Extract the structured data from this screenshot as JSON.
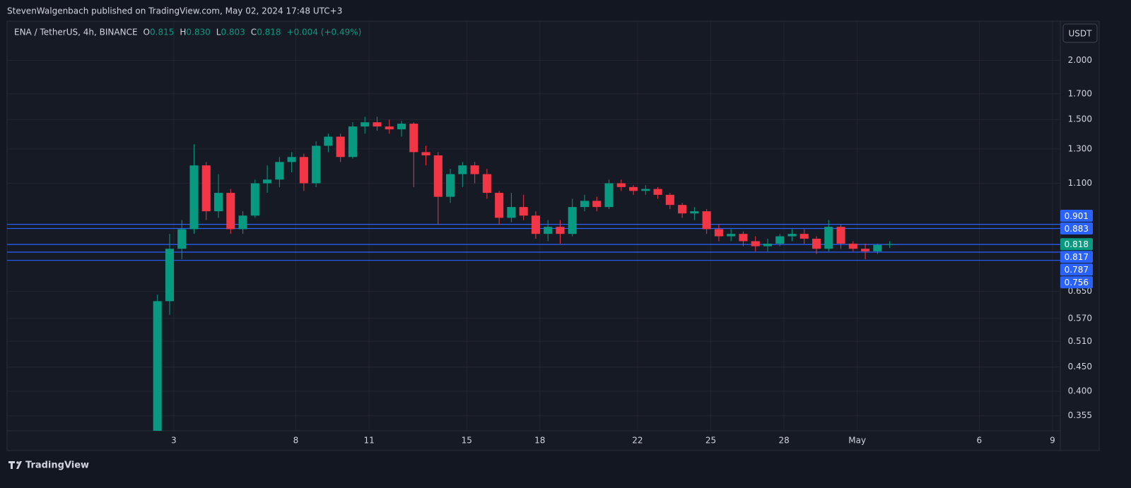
{
  "header": {
    "publisher": "StevenWalgenbach published on TradingView.com, May 02, 2024 17:48 UTC+3",
    "brand": "TradingView"
  },
  "chart_data": {
    "type": "candlestick",
    "legend": {
      "symbol": "ENA / TetherUS, 4h, BINANCE",
      "items": [
        {
          "key": "O",
          "value": "0.815"
        },
        {
          "key": "H",
          "value": "0.830"
        },
        {
          "key": "L",
          "value": "0.803"
        },
        {
          "key": "C",
          "value": "0.818"
        }
      ],
      "change": "+0.004 (+0.49%)"
    },
    "currency": "USDT",
    "up_color": "#089981",
    "down_color": "#f23645",
    "x": [
      2.33,
      2.83,
      3.33,
      3.83,
      4.33,
      4.83,
      5.33,
      5.83,
      6.33,
      6.83,
      7.33,
      7.83,
      8.33,
      8.83,
      9.33,
      9.83,
      10.33,
      10.83,
      11.33,
      11.83,
      12.33,
      12.83,
      13.33,
      13.83,
      14.33,
      14.83,
      15.33,
      15.83,
      16.33,
      16.83,
      17.33,
      17.83,
      18.33,
      18.83,
      19.33,
      19.83,
      20.33,
      20.83,
      21.33,
      21.83,
      22.33,
      22.83,
      23.33,
      23.83,
      24.33,
      24.83,
      25.33,
      25.83,
      26.33,
      26.83,
      27.33,
      27.83,
      28.33,
      28.83,
      29.33,
      29.83,
      30.33,
      30.83,
      31.33,
      31.83,
      32.33
    ],
    "open": [
      0.33,
      0.62,
      0.8,
      0.88,
      1.2,
      0.96,
      1.05,
      0.88,
      0.94,
      1.1,
      1.12,
      1.22,
      1.25,
      1.1,
      1.32,
      1.38,
      1.25,
      1.45,
      1.48,
      1.45,
      1.43,
      1.47,
      1.28,
      1.26,
      1.03,
      1.15,
      1.2,
      1.15,
      1.05,
      0.93,
      0.98,
      0.94,
      0.86,
      0.89,
      0.86,
      0.98,
      1.01,
      0.98,
      1.1,
      1.08,
      1.06,
      1.07,
      1.04,
      0.99,
      0.95,
      0.96,
      0.88,
      0.85,
      0.86,
      0.83,
      0.81,
      0.82,
      0.85,
      0.86,
      0.84,
      0.8,
      0.89,
      0.82,
      0.8,
      0.79,
      0.815
    ],
    "high": [
      0.64,
      0.86,
      0.92,
      1.33,
      1.22,
      1.15,
      1.07,
      0.96,
      1.12,
      1.2,
      1.25,
      1.28,
      1.27,
      1.35,
      1.4,
      1.4,
      1.48,
      1.52,
      1.52,
      1.5,
      1.49,
      1.48,
      1.32,
      1.28,
      1.18,
      1.22,
      1.22,
      1.18,
      1.06,
      1.05,
      1.04,
      0.96,
      0.92,
      0.92,
      1.02,
      1.04,
      1.03,
      1.12,
      1.12,
      1.09,
      1.09,
      1.08,
      1.05,
      1.0,
      0.98,
      0.97,
      0.9,
      0.88,
      0.87,
      0.85,
      0.84,
      0.86,
      0.88,
      0.88,
      0.85,
      0.92,
      0.9,
      0.83,
      0.82,
      0.82,
      0.83
    ],
    "low": [
      0.334,
      0.58,
      0.76,
      0.86,
      0.92,
      0.93,
      0.86,
      0.86,
      0.93,
      1.05,
      1.08,
      1.16,
      1.06,
      1.08,
      1.28,
      1.22,
      1.24,
      1.4,
      1.42,
      1.4,
      1.38,
      1.08,
      1.2,
      0.9,
      1.0,
      1.08,
      1.1,
      1.02,
      0.9,
      0.91,
      0.92,
      0.84,
      0.83,
      0.82,
      0.85,
      0.96,
      0.96,
      0.97,
      1.06,
      1.04,
      1.04,
      1.02,
      0.97,
      0.93,
      0.92,
      0.86,
      0.83,
      0.83,
      0.81,
      0.79,
      0.79,
      0.81,
      0.83,
      0.82,
      0.78,
      0.79,
      0.8,
      0.79,
      0.76,
      0.78,
      0.803
    ],
    "close": [
      0.62,
      0.8,
      0.88,
      1.2,
      0.96,
      1.05,
      0.88,
      0.94,
      1.1,
      1.12,
      1.22,
      1.25,
      1.1,
      1.32,
      1.38,
      1.25,
      1.45,
      1.48,
      1.45,
      1.43,
      1.47,
      1.28,
      1.26,
      1.03,
      1.15,
      1.2,
      1.15,
      1.05,
      0.93,
      0.98,
      0.94,
      0.86,
      0.89,
      0.86,
      0.98,
      1.01,
      0.98,
      1.1,
      1.08,
      1.06,
      1.07,
      1.04,
      0.99,
      0.95,
      0.96,
      0.88,
      0.85,
      0.86,
      0.83,
      0.81,
      0.82,
      0.85,
      0.86,
      0.84,
      0.8,
      0.89,
      0.82,
      0.8,
      0.79,
      0.815,
      0.818
    ],
    "horizontal_lines": {
      "color": "#2962ff",
      "values": [
        0.901,
        0.883,
        0.817,
        0.787,
        0.756
      ]
    },
    "log_scale": true,
    "grid": true,
    "xlim": [
      -3.83,
      39.32
    ],
    "xticks": [
      3,
      8,
      11,
      15,
      18,
      22,
      25,
      28,
      {
        "value": 31,
        "label": "May"
      },
      {
        "value": 36,
        "label": "6"
      },
      {
        "value": 39,
        "label": "9"
      }
    ],
    "ylim": [
      0.33,
      2.42
    ],
    "yticks": [
      {
        "value": 0.355,
        "label": "0.355"
      },
      {
        "value": 0.4,
        "label": "0.400"
      },
      {
        "value": 0.45,
        "label": "0.450"
      },
      {
        "value": 0.51,
        "label": "0.510"
      },
      {
        "value": 0.57,
        "label": "0.570"
      },
      {
        "value": 0.65,
        "label": "0.650"
      },
      {
        "value": 1.1,
        "label": "1.100"
      },
      {
        "value": 1.3,
        "label": "1.300"
      },
      {
        "value": 1.5,
        "label": "1.500"
      },
      {
        "value": 1.7,
        "label": "1.700"
      },
      {
        "value": 2,
        "label": "2.000"
      }
    ]
  }
}
